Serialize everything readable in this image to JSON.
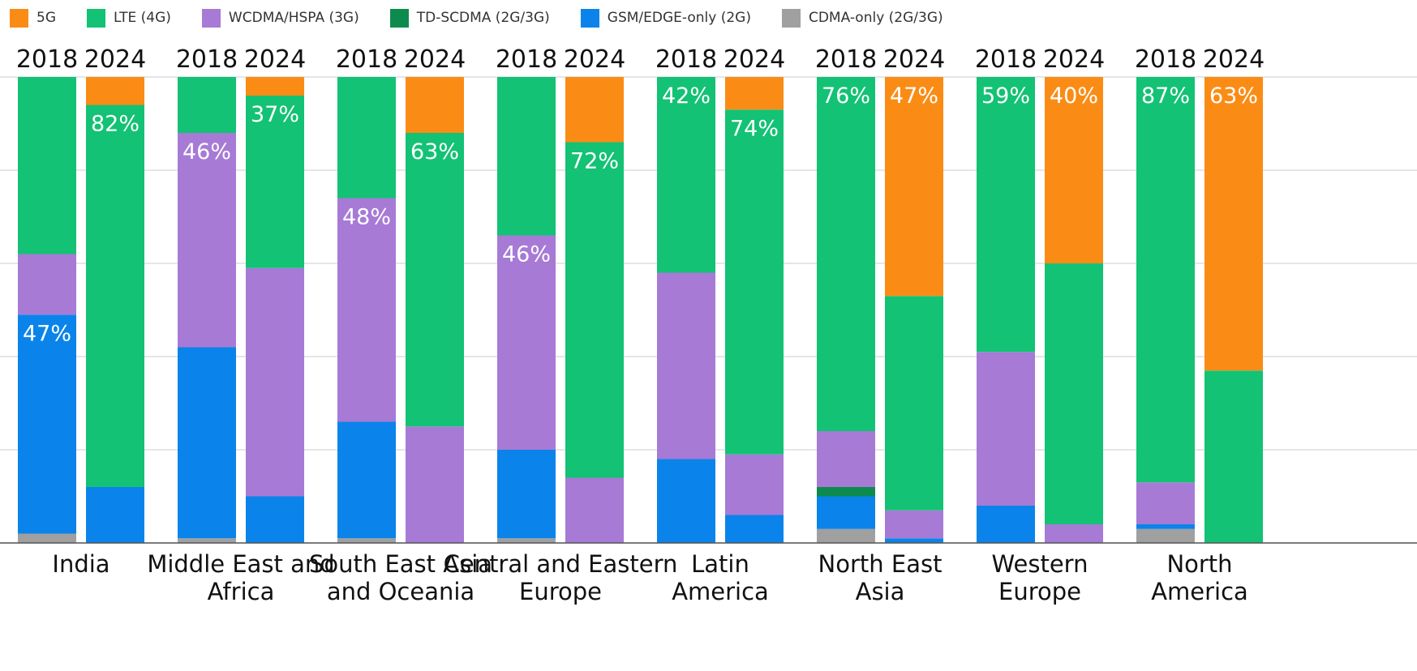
{
  "chart_data": {
    "type": "bar",
    "stacked": true,
    "normalized": true,
    "title": "",
    "xlabel": "",
    "ylabel": "",
    "ylim": [
      0,
      100
    ],
    "grid": true,
    "legend_position": "top-left",
    "legend": [
      {
        "name": "5G",
        "color": "#FA8C16"
      },
      {
        "name": "LTE (4G)",
        "color": "#13C274"
      },
      {
        "name": "WCDMA/HSPA (3G)",
        "color": "#A77AD6"
      },
      {
        "name": "TD-SCDMA (2G/3G)",
        "color": "#0D8B4E"
      },
      {
        "name": "GSM/EDGE-only (2G)",
        "color": "#0A84EA"
      },
      {
        "name": "CDMA-only (2G/3G)",
        "color": "#A0A0A0"
      }
    ],
    "segment_order_bottom_to_top": [
      "CDMA-only (2G/3G)",
      "GSM/EDGE-only (2G)",
      "TD-SCDMA (2G/3G)",
      "WCDMA/HSPA (3G)",
      "LTE (4G)",
      "5G"
    ],
    "regions": [
      {
        "name": "India",
        "bars": [
          {
            "year": "2018",
            "values": {
              "CDMA-only (2G/3G)": 2,
              "GSM/EDGE-only (2G)": 47,
              "TD-SCDMA (2G/3G)": 0,
              "WCDMA/HSPA (3G)": 13,
              "LTE (4G)": 38,
              "5G": 0
            },
            "label": "47%",
            "label_series": "GSM/EDGE-only (2G)"
          },
          {
            "year": "2024",
            "values": {
              "CDMA-only (2G/3G)": 0,
              "GSM/EDGE-only (2G)": 12,
              "TD-SCDMA (2G/3G)": 0,
              "WCDMA/HSPA (3G)": 0,
              "LTE (4G)": 82,
              "5G": 6
            },
            "label": "82%",
            "label_series": "LTE (4G)"
          }
        ]
      },
      {
        "name": "Middle East and Africa",
        "bars": [
          {
            "year": "2018",
            "values": {
              "CDMA-only (2G/3G)": 1,
              "GSM/EDGE-only (2G)": 41,
              "TD-SCDMA (2G/3G)": 0,
              "WCDMA/HSPA (3G)": 46,
              "LTE (4G)": 12,
              "5G": 0
            },
            "label": "46%",
            "label_series": "WCDMA/HSPA (3G)"
          },
          {
            "year": "2024",
            "values": {
              "CDMA-only (2G/3G)": 0,
              "GSM/EDGE-only (2G)": 10,
              "TD-SCDMA (2G/3G)": 0,
              "WCDMA/HSPA (3G)": 49,
              "LTE (4G)": 37,
              "5G": 4
            },
            "label": "37%",
            "label_series": "LTE (4G)"
          }
        ]
      },
      {
        "name": "South East Asia and Oceania",
        "bars": [
          {
            "year": "2018",
            "values": {
              "CDMA-only (2G/3G)": 1,
              "GSM/EDGE-only (2G)": 25,
              "TD-SCDMA (2G/3G)": 0,
              "WCDMA/HSPA (3G)": 48,
              "LTE (4G)": 26,
              "5G": 0
            },
            "label": "48%",
            "label_series": "WCDMA/HSPA (3G)"
          },
          {
            "year": "2024",
            "values": {
              "CDMA-only (2G/3G)": 0,
              "GSM/EDGE-only (2G)": 0,
              "TD-SCDMA (2G/3G)": 0,
              "WCDMA/HSPA (3G)": 25,
              "LTE (4G)": 63,
              "5G": 12
            },
            "label": "63%",
            "label_series": "LTE (4G)"
          }
        ]
      },
      {
        "name": "Central and Eastern Europe",
        "bars": [
          {
            "year": "2018",
            "values": {
              "CDMA-only (2G/3G)": 1,
              "GSM/EDGE-only (2G)": 19,
              "TD-SCDMA (2G/3G)": 0,
              "WCDMA/HSPA (3G)": 46,
              "LTE (4G)": 34,
              "5G": 0
            },
            "label": "46%",
            "label_series": "WCDMA/HSPA (3G)"
          },
          {
            "year": "2024",
            "values": {
              "CDMA-only (2G/3G)": 0,
              "GSM/EDGE-only (2G)": 0,
              "TD-SCDMA (2G/3G)": 0,
              "WCDMA/HSPA (3G)": 14,
              "LTE (4G)": 72,
              "5G": 14
            },
            "label": "72%",
            "label_series": "LTE (4G)"
          }
        ]
      },
      {
        "name": "Latin America",
        "bars": [
          {
            "year": "2018",
            "values": {
              "CDMA-only (2G/3G)": 0,
              "GSM/EDGE-only (2G)": 18,
              "TD-SCDMA (2G/3G)": 0,
              "WCDMA/HSPA (3G)": 40,
              "LTE (4G)": 42,
              "5G": 0
            },
            "label": "42%",
            "label_series": "LTE (4G)"
          },
          {
            "year": "2024",
            "values": {
              "CDMA-only (2G/3G)": 0,
              "GSM/EDGE-only (2G)": 6,
              "TD-SCDMA (2G/3G)": 0,
              "WCDMA/HSPA (3G)": 13,
              "LTE (4G)": 74,
              "5G": 7
            },
            "label": "74%",
            "label_series": "LTE (4G)"
          }
        ]
      },
      {
        "name": "North East Asia",
        "bars": [
          {
            "year": "2018",
            "values": {
              "CDMA-only (2G/3G)": 3,
              "GSM/EDGE-only (2G)": 7,
              "TD-SCDMA (2G/3G)": 2,
              "WCDMA/HSPA (3G)": 12,
              "LTE (4G)": 76,
              "5G": 0
            },
            "label": "76%",
            "label_series": "LTE (4G)"
          },
          {
            "year": "2024",
            "values": {
              "CDMA-only (2G/3G)": 0,
              "GSM/EDGE-only (2G)": 1,
              "TD-SCDMA (2G/3G)": 0,
              "WCDMA/HSPA (3G)": 6,
              "LTE (4G)": 46,
              "5G": 47
            },
            "label": "47%",
            "label_series": "5G"
          }
        ]
      },
      {
        "name": "Western Europe",
        "bars": [
          {
            "year": "2018",
            "values": {
              "CDMA-only (2G/3G)": 0,
              "GSM/EDGE-only (2G)": 8,
              "TD-SCDMA (2G/3G)": 0,
              "WCDMA/HSPA (3G)": 33,
              "LTE (4G)": 59,
              "5G": 0
            },
            "label": "59%",
            "label_series": "LTE (4G)"
          },
          {
            "year": "2024",
            "values": {
              "CDMA-only (2G/3G)": 0,
              "GSM/EDGE-only (2G)": 0,
              "TD-SCDMA (2G/3G)": 0,
              "WCDMA/HSPA (3G)": 4,
              "LTE (4G)": 56,
              "5G": 40
            },
            "label": "40%",
            "label_series": "5G"
          }
        ]
      },
      {
        "name": "North America",
        "bars": [
          {
            "year": "2018",
            "values": {
              "CDMA-only (2G/3G)": 3,
              "GSM/EDGE-only (2G)": 1,
              "TD-SCDMA (2G/3G)": 0,
              "WCDMA/HSPA (3G)": 9,
              "LTE (4G)": 87,
              "5G": 0
            },
            "label": "87%",
            "label_series": "LTE (4G)"
          },
          {
            "year": "2024",
            "values": {
              "CDMA-only (2G/3G)": 0,
              "GSM/EDGE-only (2G)": 0,
              "TD-SCDMA (2G/3G)": 0,
              "WCDMA/HSPA (3G)": 0,
              "LTE (4G)": 37,
              "5G": 63
            },
            "label": "63%",
            "label_series": "5G"
          }
        ]
      }
    ]
  }
}
